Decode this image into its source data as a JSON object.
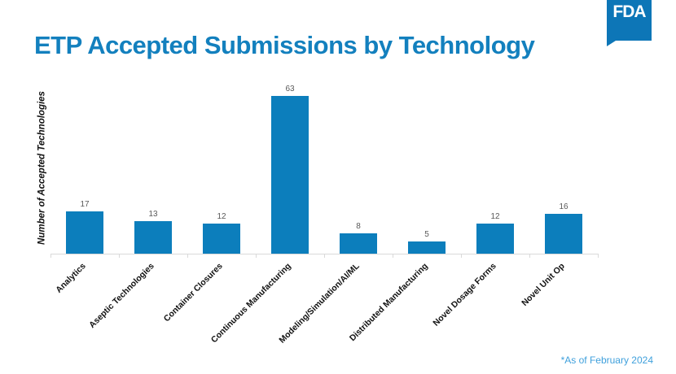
{
  "header": {
    "title": "ETP Accepted Submissions by Technology",
    "title_color": "#1380be"
  },
  "logo": {
    "text": "FDA",
    "color": "#0d76b7"
  },
  "chart_data": {
    "type": "bar",
    "title": "ETP Accepted Submissions by Technology",
    "categories": [
      "Analytics",
      "Aseptic Technologies",
      "Container Closures",
      "Continuous Manufacturing",
      "Modeling/Simulation/AI/ML",
      "Distributed Manufacturing",
      "Novel Dosage Forms",
      "Novel Unit Op"
    ],
    "values": [
      17,
      13,
      12,
      63,
      8,
      5,
      12,
      16
    ],
    "xlabel": "",
    "ylabel": "Number of Accepted Technologies",
    "ylim": [
      0,
      63
    ],
    "grid": false,
    "legend": false,
    "data_labels": true,
    "bar_color": "#0c7ebc",
    "value_label_color": "#595959",
    "axis_color": "#d9d9d9"
  },
  "footnote": {
    "text": "*As of February 2024",
    "color": "#3fa0dc"
  }
}
